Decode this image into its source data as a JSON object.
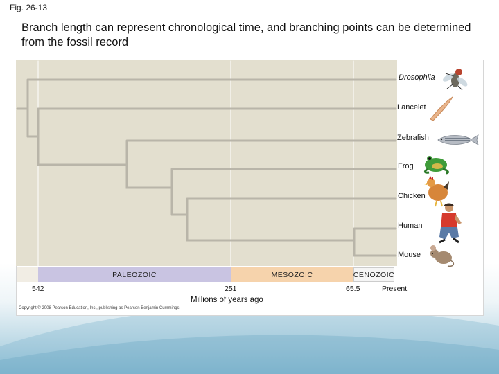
{
  "figure_label": "Fig. 26-13",
  "title": "Branch length can represent chronological time, and branching points can be determined from the fossil record",
  "taxa": [
    "Drosophila",
    "Lancelet",
    "Zebrafish",
    "Frog",
    "Chicken",
    "Human",
    "Mouse"
  ],
  "eras": [
    "PALEOZOIC",
    "MESOZOIC",
    "CENOZOIC"
  ],
  "ticks": [
    "542",
    "251",
    "65.5",
    "Present"
  ],
  "axis_label": "Millions of years ago",
  "copyright": "Copyright © 2008 Pearson Education, Inc., publishing as Pearson Benjamin Cummings",
  "colors": {
    "paleozoic": "#c9c4e2",
    "mesozoic": "#f6d3ac",
    "tree_background": "#e3dfcf",
    "branch": "#b9b5a9"
  },
  "animal_icons": [
    "fly-icon",
    "lancelet-icon",
    "zebrafish-icon",
    "frog-icon",
    "chicken-icon",
    "human-icon",
    "mouse-icon"
  ]
}
